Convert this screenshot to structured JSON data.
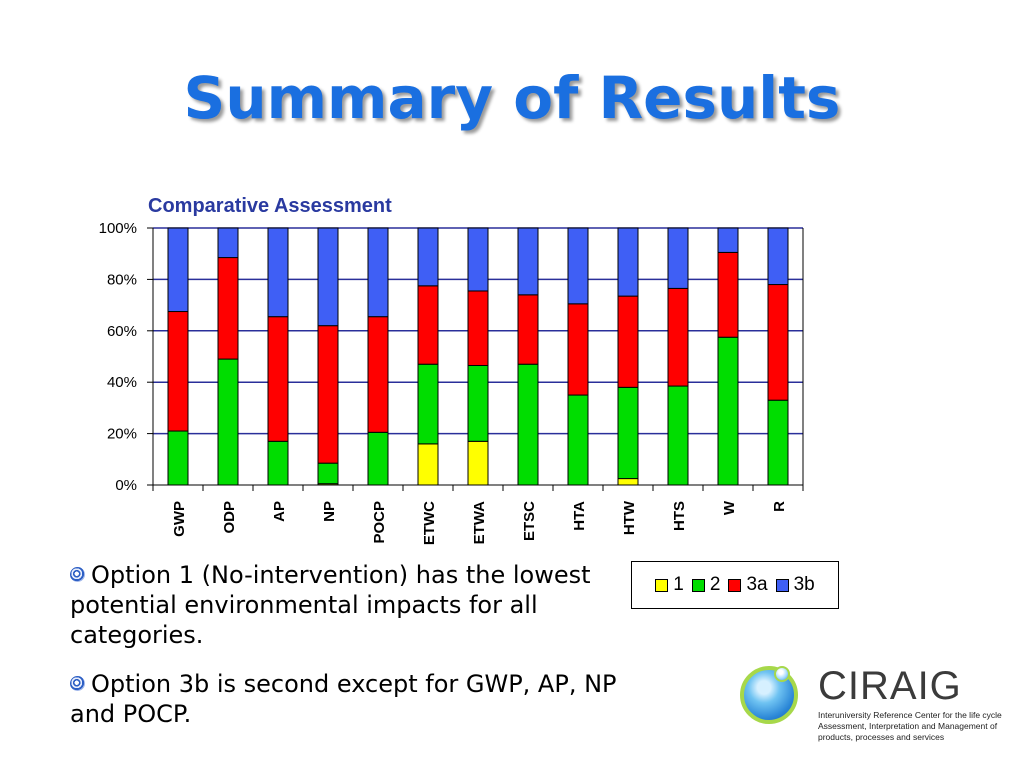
{
  "slide": {
    "title": "Summary of Results",
    "bullets": [
      "Option 1 (No-intervention) has the lowest potential environmental impacts for all categories.",
      "Option 3b is second except for GWP, AP, NP and POCP."
    ]
  },
  "logo": {
    "name": "CIRAIG",
    "tagline": "Interuniversity Reference Center for the life cycle Assessment, Interpretation and Management of products, processes and services"
  },
  "chart_data": {
    "type": "bar",
    "stacked": true,
    "title": "Comparative Assessment",
    "xlabel": "",
    "ylabel": "",
    "ylim": [
      0,
      100
    ],
    "yticks": [
      "0%",
      "20%",
      "40%",
      "60%",
      "80%",
      "100%"
    ],
    "grid": true,
    "legend": "bottom-right",
    "categories": [
      "GWP",
      "ODP",
      "AP",
      "NP",
      "POCP",
      "ETWC",
      "ETWA",
      "ETSC",
      "HTA",
      "HTW",
      "HTS",
      "W",
      "R"
    ],
    "series": [
      {
        "name": "1",
        "color": "#ffff00",
        "values": [
          0,
          0,
          0,
          0.5,
          0,
          16,
          17,
          0,
          0,
          2.5,
          0,
          0,
          0
        ]
      },
      {
        "name": "2",
        "color": "#00dd00",
        "values": [
          21,
          49,
          17,
          8,
          20.5,
          31,
          29.5,
          47,
          35,
          35.5,
          38.5,
          57.5,
          33
        ]
      },
      {
        "name": "3a",
        "color": "#ff0000",
        "values": [
          46.5,
          39.5,
          48.5,
          53.5,
          45,
          30.5,
          29,
          27,
          35.5,
          35.5,
          38,
          33,
          45
        ]
      },
      {
        "name": "3b",
        "color": "#3f5ff5",
        "values": [
          32.5,
          11.5,
          34.5,
          38,
          34.5,
          22.5,
          24.5,
          26,
          29.5,
          26.5,
          23.5,
          9.5,
          22
        ]
      }
    ]
  }
}
